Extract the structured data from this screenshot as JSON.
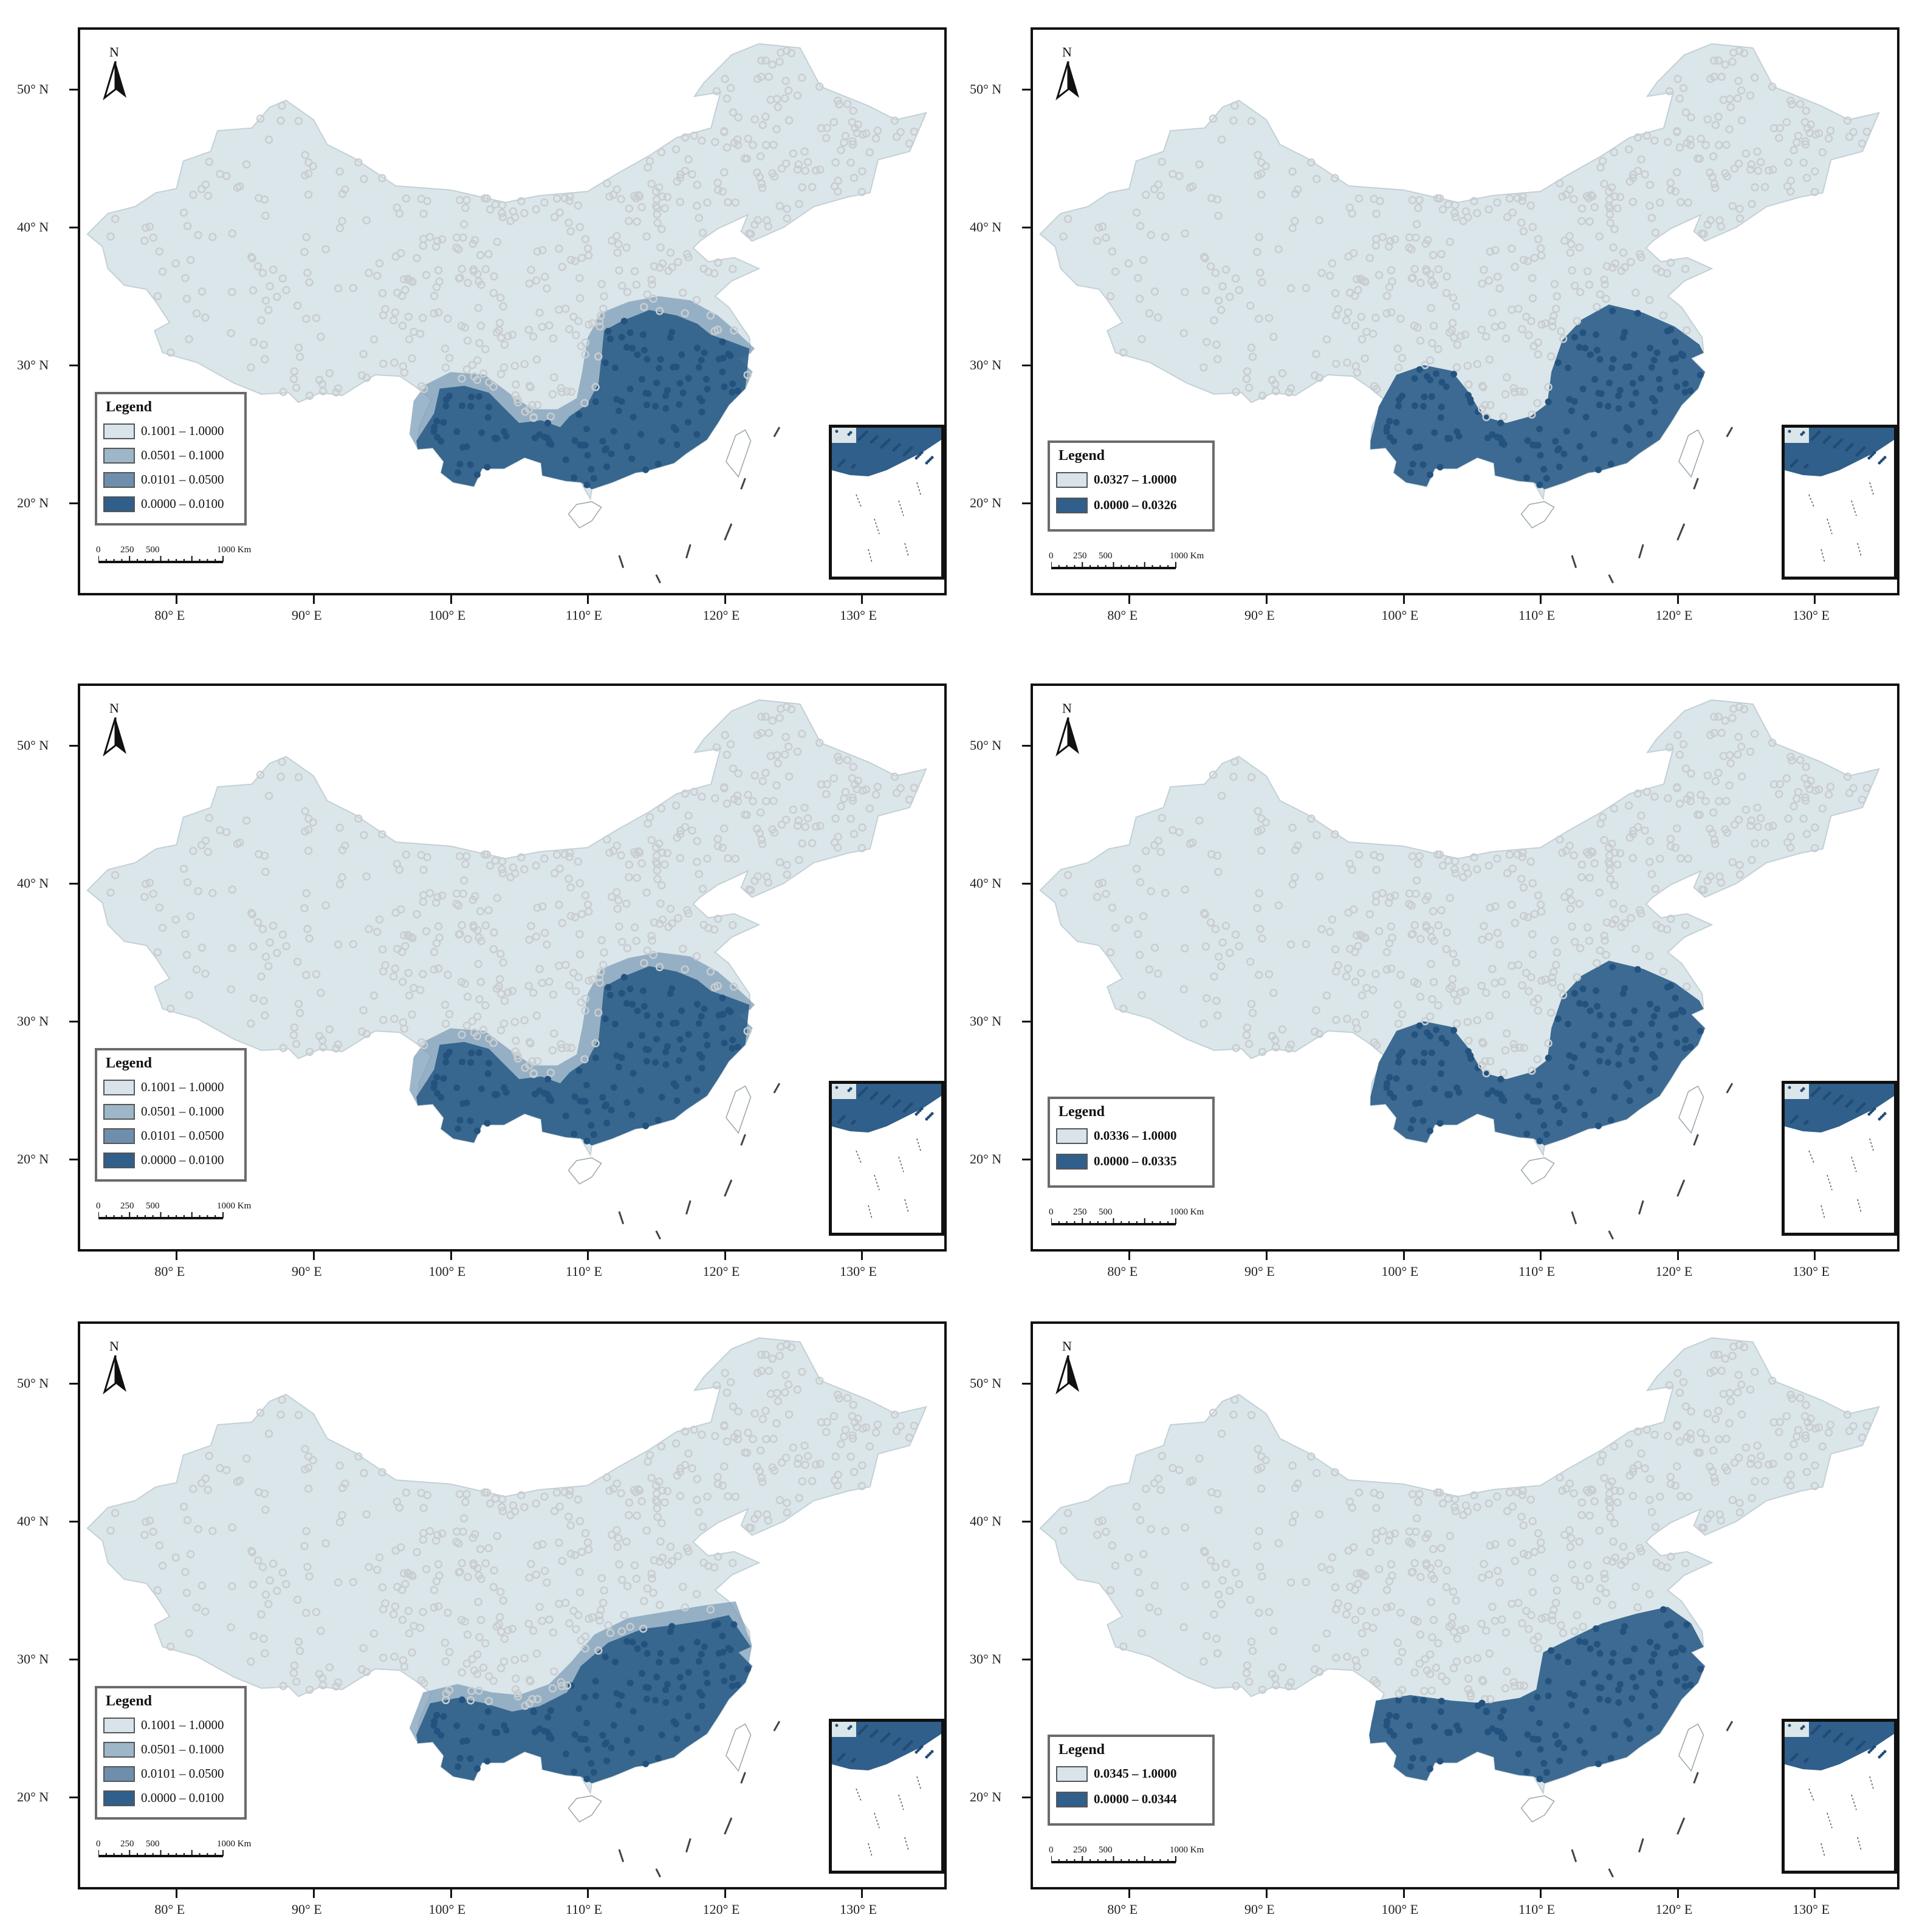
{
  "common": {
    "lat_labels": [
      "50° N",
      "40° N",
      "30° N",
      "20° N"
    ],
    "lon_labels": [
      "80° E",
      "90° E",
      "100° E",
      "110° E",
      "120° E",
      "130° E"
    ],
    "north_label": "N",
    "legend_title": "Legend",
    "scale_labels": [
      "0",
      "250",
      "500",
      "1000 Km"
    ],
    "colors": {
      "land": "#dbe6ea",
      "station": "#c9cdd0",
      "dark": "#2f5f8a",
      "mid": "#5f82a2",
      "light": "#8eaac0",
      "pale": "#c7d6df"
    }
  },
  "panels": [
    {
      "id": "top-left",
      "legend": [
        {
          "label": "0.1001 – 1.0000",
          "color": "#d8e4ea"
        },
        {
          "label": "0.0501 – 0.1000",
          "color": "#9db6c8"
        },
        {
          "label": "0.0101 – 0.0500",
          "color": "#6d8fac"
        },
        {
          "label": "0.0000 – 0.0100",
          "color": "#2f5f8a"
        }
      ]
    },
    {
      "id": "top-right",
      "legend": [
        {
          "label": "0.0327 – 1.0000",
          "color": "#d8e4ea"
        },
        {
          "label": "0.0000 – 0.0326",
          "color": "#2f5f8a"
        }
      ]
    },
    {
      "id": "middle-left",
      "legend": [
        {
          "label": "0.1001 – 1.0000",
          "color": "#d8e4ea"
        },
        {
          "label": "0.0501 – 0.1000",
          "color": "#9db6c8"
        },
        {
          "label": "0.0101 – 0.0500",
          "color": "#6d8fac"
        },
        {
          "label": "0.0000 – 0.0100",
          "color": "#2f5f8a"
        }
      ]
    },
    {
      "id": "middle-right",
      "legend": [
        {
          "label": "0.0336 – 1.0000",
          "color": "#d8e4ea"
        },
        {
          "label": "0.0000 – 0.0335",
          "color": "#2f5f8a"
        }
      ]
    },
    {
      "id": "bottom-left",
      "legend": [
        {
          "label": "0.1001 – 1.0000",
          "color": "#d8e4ea"
        },
        {
          "label": "0.0501 – 0.1000",
          "color": "#9db6c8"
        },
        {
          "label": "0.0101 – 0.0500",
          "color": "#6d8fac"
        },
        {
          "label": "0.0000 – 0.0100",
          "color": "#2f5f8a"
        }
      ]
    },
    {
      "id": "bottom-right",
      "legend": [
        {
          "label": "0.0345 – 1.0000",
          "color": "#d8e4ea"
        },
        {
          "label": "0.0000 – 0.0344",
          "color": "#2f5f8a"
        }
      ]
    }
  ]
}
